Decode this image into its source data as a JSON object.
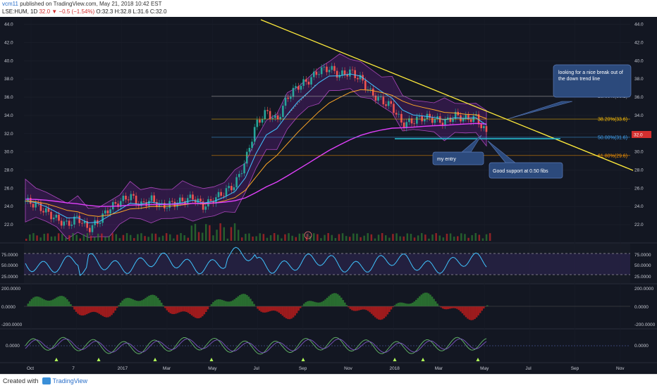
{
  "header": {
    "username": "vcm11",
    "published": "published on TradingView.com, May 21, 2018 10:42 EST",
    "symbol": "LSE:HUM, 1D",
    "last": "32.0",
    "change": "▼ −0.5 (−1.54%)",
    "o": "O:32.3",
    "h": "H:32.8",
    "l": "L:31.6",
    "c": "C:32.0"
  },
  "footer": {
    "created": "Created with",
    "brand": "TradingView"
  },
  "colors": {
    "background": "#131722",
    "price_line": "#d32f2f",
    "up_candle": "#26a69a",
    "down_candle": "#ef5350",
    "bollinger": "#9c27b0",
    "ema_fast": "#40c4ff",
    "ema_slow": "#ffa726",
    "sma_long": "#e040fb",
    "trendline": "#ffeb3b",
    "annotation_box": "#2c4a7c",
    "rsi_line": "#40c4ff"
  },
  "annotations": [
    {
      "text1": "looking for a nice break out of",
      "text2": "the down trend line"
    },
    {
      "text1": "my entry",
      "text2": ""
    },
    {
      "text1": "Good support at 0.50 fibs",
      "text2": ""
    }
  ],
  "chart_data": [
    {
      "type": "line",
      "panel": "price",
      "y_ticks": [
        "44.0",
        "42.0",
        "40.0",
        "38.0",
        "36.0",
        "34.0",
        "32.0",
        "30.0",
        "28.0",
        "26.0",
        "24.0",
        "22.0"
      ],
      "ylim": [
        21,
        44.2
      ],
      "x_ticks": [
        "Oct",
        "7",
        "2017",
        "Mar",
        "May",
        "Jul",
        "Sep",
        "Nov",
        "2018",
        "Mar",
        "May",
        "Jul",
        "Sep",
        "Nov"
      ],
      "last_price": "32.0",
      "close_series": [
        24.6,
        24.2,
        23.4,
        22.6,
        22.0,
        22.8,
        21.5,
        22.4,
        23.8,
        24.5,
        25.2,
        24.1,
        24.8,
        24.0,
        24.3,
        24.6,
        25.0,
        24.0,
        24.8,
        25.6,
        26.4,
        29.0,
        33.0,
        34.4,
        33.4,
        36.0,
        37.2,
        37.8,
        38.9,
        39.2,
        38.4,
        38.8,
        38.0,
        36.4,
        35.6,
        35.0,
        33.0,
        33.4,
        33.8,
        33.6,
        33.2,
        34.0,
        33.6,
        33.8,
        32.0
      ],
      "fib_levels": [
        {
          "label": "23.60%(36.1)",
          "value": 36.1,
          "color": "#9e9e9e"
        },
        {
          "label": "38.20%(33.6)",
          "value": 33.6,
          "color": "#ffc107"
        },
        {
          "label": "50.00%(31.6)",
          "value": 31.6,
          "color": "#42a5f5"
        },
        {
          "label": "61.80%(29.6)",
          "value": 29.6,
          "color": "#ff9800"
        }
      ]
    },
    {
      "type": "line",
      "panel": "RSI",
      "y_ticks": [
        "75.0000",
        "50.0000",
        "25.0000"
      ],
      "ylim": [
        20,
        85
      ]
    },
    {
      "type": "area",
      "panel": "MACD histogram",
      "y_ticks": [
        "200.0000",
        "0.0000",
        "-200.0000"
      ]
    },
    {
      "type": "line",
      "panel": "oscillator",
      "y_ticks": [
        "0.0000"
      ]
    }
  ]
}
